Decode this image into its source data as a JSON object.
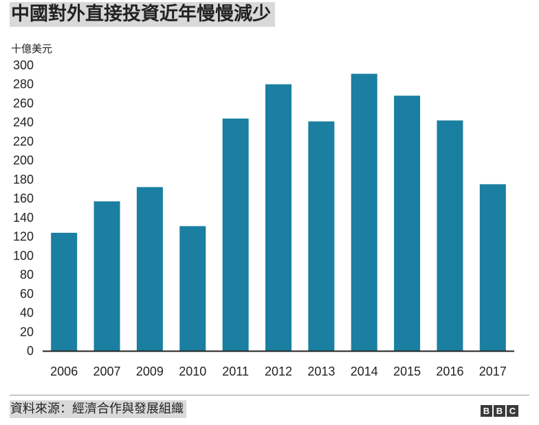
{
  "title": "中國對外直接投資近年慢慢減少",
  "source": "資料來源：經濟合作與發展組織",
  "logo": [
    "B",
    "B",
    "C"
  ],
  "colors": {
    "bar": "#1a7fa0",
    "axis": "#222222",
    "title_bg": "#d9d9d9"
  },
  "chart_data": {
    "type": "bar",
    "title": "中國對外直接投資近年慢慢減少",
    "ylabel": "十億美元",
    "xlabel": "",
    "categories": [
      "2006",
      "2007",
      "2009",
      "2010",
      "2011",
      "2012",
      "2013",
      "2014",
      "2015",
      "2016",
      "2017"
    ],
    "values": [
      124,
      157,
      172,
      131,
      244,
      280,
      241,
      291,
      268,
      242,
      175
    ],
    "ylim": [
      0,
      300
    ],
    "yticks": [
      0,
      20,
      40,
      60,
      80,
      100,
      120,
      140,
      160,
      180,
      200,
      220,
      240,
      260,
      280,
      300
    ],
    "grid": false,
    "legend": "none"
  }
}
